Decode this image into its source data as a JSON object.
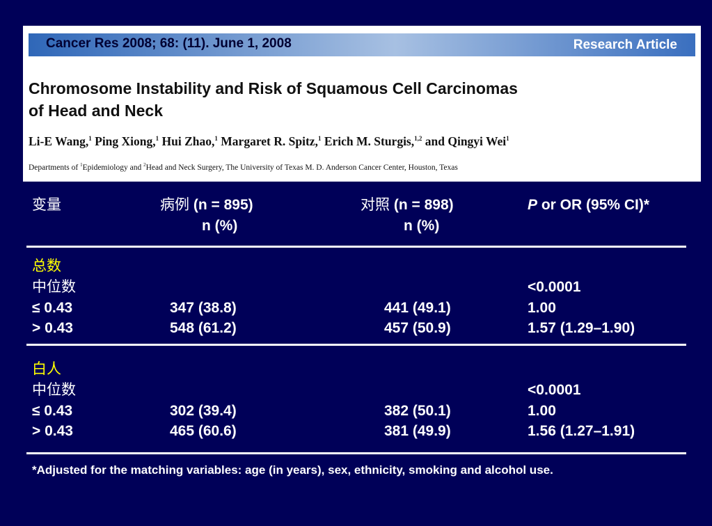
{
  "header": {
    "citation": "Cancer Res 2008; 68: (11). June 1, 2008",
    "article_type": "Research Article",
    "title_line1": "Chromosome Instability and Risk of Squamous Cell Carcinomas",
    "title_line2": "of Head and Neck",
    "authors": [
      {
        "name": "Li-E Wang,",
        "sup": "1"
      },
      {
        "name": "Ping Xiong,",
        "sup": "1"
      },
      {
        "name": "Hui Zhao,",
        "sup": "1"
      },
      {
        "name": "Margaret R. Spitz,",
        "sup": "1"
      },
      {
        "name": "Erich M. Sturgis,",
        "sup": "1,2"
      },
      {
        "name": "and Qingyi Wei",
        "sup": "1"
      }
    ],
    "affiliation_prefix": "Departments of ",
    "affiliation_sup1": "1",
    "affiliation_mid": "Epidemiology and ",
    "affiliation_sup2": "2",
    "affiliation_rest": "Head and Neck Surgery, The University of Texas M. D. Anderson Cancer Center, Houston, Texas"
  },
  "table": {
    "headers": {
      "variable": "变量",
      "cases_cjk": "病例",
      "cases_n": " (n = 895)",
      "cases_sub": "n (%)",
      "controls_cjk": "对照",
      "controls_n": " (n = 898)",
      "controls_sub": "n (%)",
      "p_italic": "P",
      "p_rest": " or OR (95% CI)*"
    },
    "sections": [
      {
        "title": "总数",
        "median_label": "中位数",
        "median_p": "<0.0001",
        "rows": [
          {
            "label": "≤ 0.43",
            "cases": "347 (38.8)",
            "controls": "441 (49.1)",
            "or": "1.00"
          },
          {
            "label": "> 0.43",
            "cases": "548 (61.2)",
            "controls": "457 (50.9)",
            "or": "1.57 (1.29–1.90)"
          }
        ]
      },
      {
        "title": "白人",
        "median_label": "中位数",
        "median_p": "<0.0001",
        "rows": [
          {
            "label": "≤ 0.43",
            "cases": "302 (39.4)",
            "controls": "382 (50.1)",
            "or": "1.00"
          },
          {
            "label": "> 0.43",
            "cases": "465 (60.6)",
            "controls": "381 (49.9)",
            "or": "1.56 (1.27–1.91)"
          }
        ]
      }
    ],
    "footnote": "*Adjusted for the matching variables: age (in years), sex, ethnicity, smoking and alcohol use."
  }
}
